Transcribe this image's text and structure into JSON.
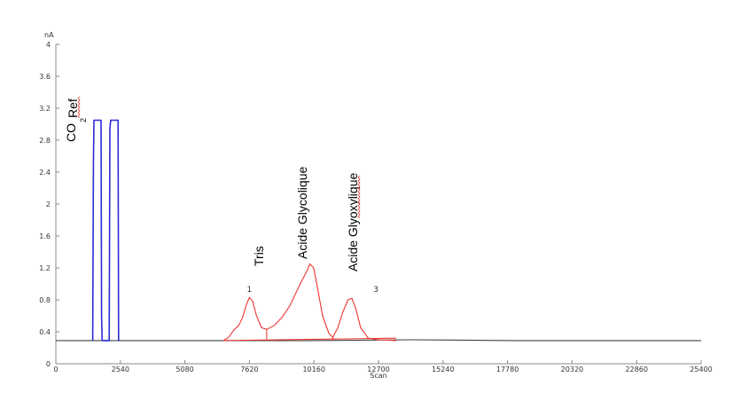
{
  "chart_data": {
    "type": "line",
    "ylabel_unit": "nA",
    "xlabel": "Scan",
    "xlim": [
      0,
      25400
    ],
    "ylim": [
      0,
      4
    ],
    "x_ticks": [
      0,
      2540,
      5080,
      7620,
      10160,
      12700,
      15240,
      17780,
      20320,
      22860,
      25400
    ],
    "x_tick_labels": [
      "0",
      "2540",
      "5080",
      "7620",
      "10160",
      "12700",
      "15240",
      "17780",
      "20320",
      "22860",
      "25400"
    ],
    "y_ticks": [
      0,
      0.4,
      0.8,
      1.2,
      1.6,
      2,
      2.4,
      2.8,
      3.2,
      3.6,
      4
    ],
    "y_tick_labels": [
      "0",
      "0.4",
      "0.8",
      "1.2",
      "1.6",
      "2",
      "2.4",
      "2.8",
      "3.2",
      "3.6",
      "4"
    ],
    "grid": false,
    "colors": {
      "baseline": "#404040",
      "reference": "#2b2bd9",
      "sample": "#ee3333",
      "axis": "#888888"
    },
    "series": [
      {
        "color": "#404040",
        "x": [
          0,
          1500,
          4000,
          6500,
          10000,
          14000,
          18000,
          22000,
          25400
        ],
        "y": [
          0.29,
          0.29,
          0.29,
          0.29,
          0.29,
          0.3,
          0.29,
          0.29,
          0.29
        ]
      },
      {
        "color": "#2b2bd9",
        "x": [
          1450,
          1480,
          1500,
          1520,
          1780,
          1800,
          1820,
          1850,
          1880,
          2100,
          2130,
          2160,
          2190,
          2450,
          2470,
          2500
        ],
        "y": [
          0.29,
          2.5,
          3.05,
          3.05,
          3.05,
          0.6,
          0.3,
          0.29,
          0.29,
          0.29,
          2.95,
          3.05,
          3.05,
          3.05,
          0.3,
          0.29
        ]
      },
      {
        "color": "#ee3333",
        "x": [
          6600,
          6800,
          7000,
          7200,
          7350,
          7500,
          7620,
          7750,
          7900,
          8100,
          8300,
          8600,
          8900,
          9200,
          9500,
          9700,
          9900,
          10000,
          10150,
          10300,
          10500,
          10750,
          10900,
          11100,
          11300,
          11500,
          11650,
          11800,
          12000,
          12300,
          12700,
          13400
        ],
        "y": [
          0.29,
          0.33,
          0.42,
          0.48,
          0.58,
          0.74,
          0.83,
          0.78,
          0.6,
          0.45,
          0.43,
          0.48,
          0.58,
          0.72,
          0.92,
          1.05,
          1.17,
          1.25,
          1.2,
          0.95,
          0.6,
          0.38,
          0.33,
          0.45,
          0.65,
          0.8,
          0.82,
          0.7,
          0.45,
          0.32,
          0.3,
          0.29
        ]
      },
      {
        "color": "#ee3333",
        "x": [
          6600,
          13400
        ],
        "y": [
          0.29,
          0.32
        ]
      }
    ],
    "drop_lines": [
      {
        "x": 8300,
        "y": 0.43
      },
      {
        "x": 10900,
        "y": 0.33
      }
    ],
    "annotations": [
      {
        "text": "CO",
        "sub": "2",
        "rotated": true
      },
      {
        "text": "Ref",
        "rotated": true,
        "spell_mark": true
      },
      {
        "text": "Tris",
        "rotated": true
      },
      {
        "text": "Acide Glycolique",
        "rotated": true
      },
      {
        "text": "Acide Glyoxylique",
        "rotated": true,
        "spell_mark": true
      }
    ],
    "peak_numbers": [
      {
        "text": "1",
        "x": 7520,
        "y": 0.9
      },
      {
        "text": "3",
        "x": 12500,
        "y": 0.9
      }
    ]
  }
}
